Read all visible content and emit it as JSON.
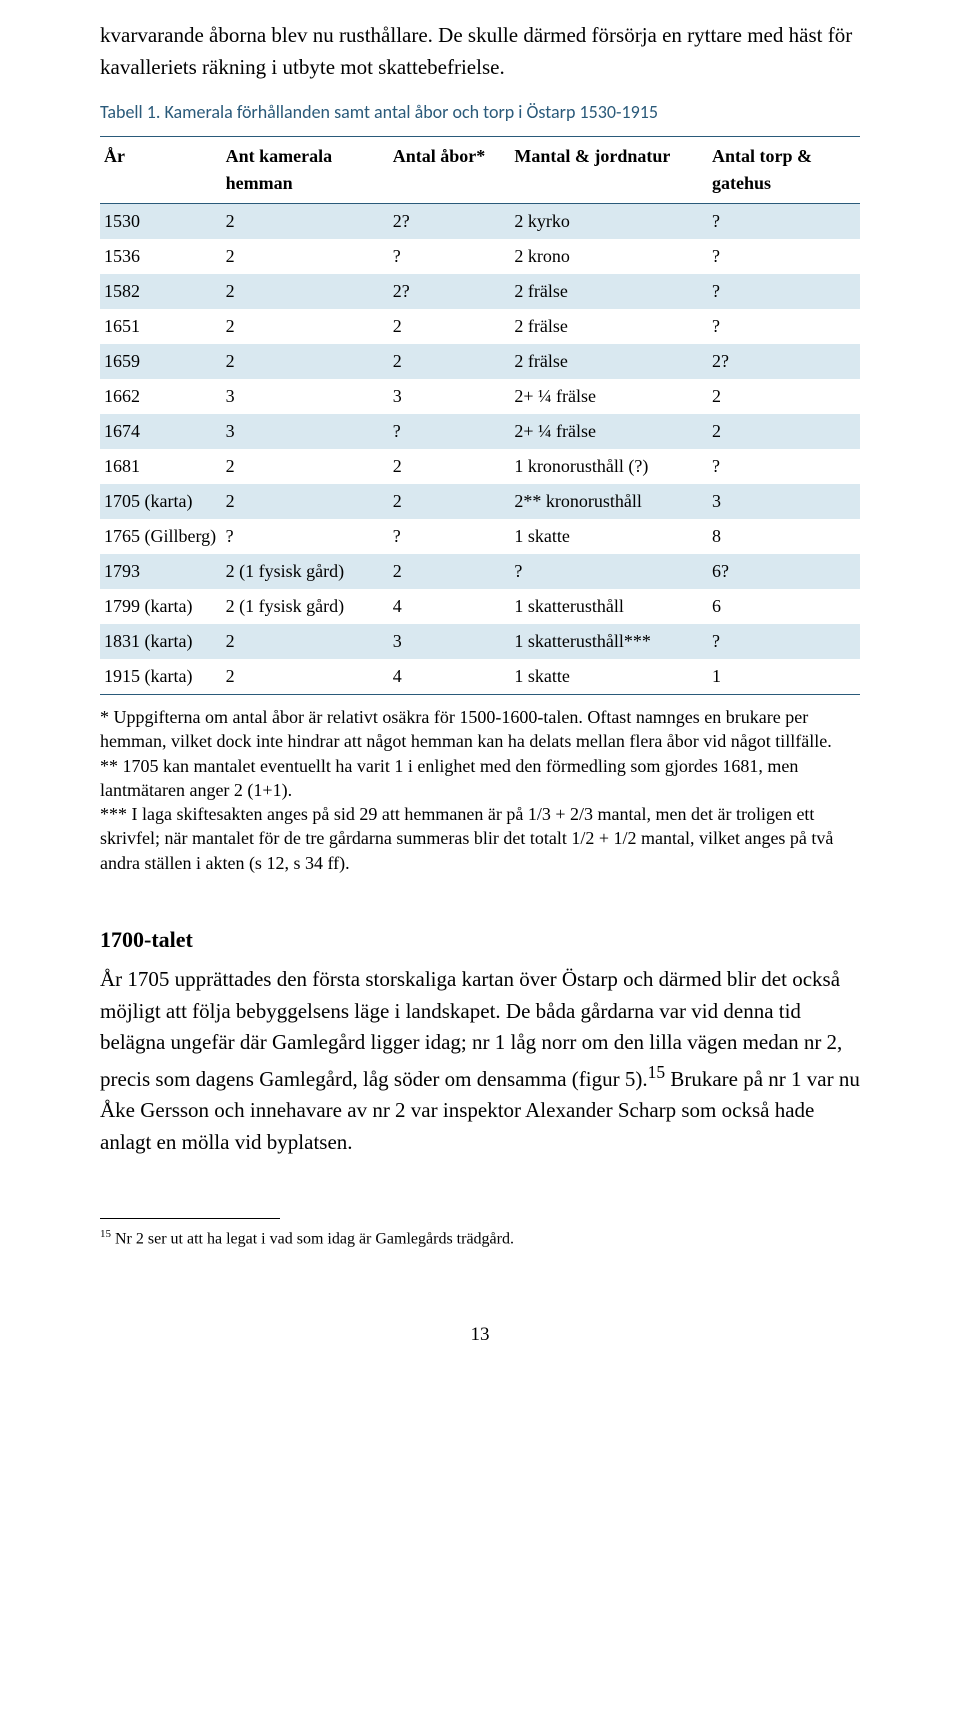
{
  "intro_para": "kvarvarande åborna blev nu rusthållare. De skulle därmed försörja en ryttare med häst för kavalleriets räkning i utbyte mot skattebefrielse.",
  "table_caption": "Tabell 1. Kamerala förhållanden samt antal åbor och torp i Östarp 1530-1915",
  "table": {
    "header_row_bg": "#ffffff",
    "stripe_bg": "#d9e8f0",
    "border_color": "#2a5a7a",
    "columns": [
      {
        "label": "År"
      },
      {
        "label": "Ant kamerala hemman"
      },
      {
        "label": "Antal åbor*"
      },
      {
        "label": "Mantal & jordnatur"
      },
      {
        "label": "Antal torp & gatehus"
      }
    ],
    "rows": [
      {
        "ar": "1530",
        "hem": "2",
        "abor": "2?",
        "mantal": "2 kyrko",
        "torp": "?",
        "striped": true
      },
      {
        "ar": "1536",
        "hem": "2",
        "abor": "?",
        "mantal": "2 krono",
        "torp": "?",
        "striped": false
      },
      {
        "ar": "1582",
        "hem": "2",
        "abor": "2?",
        "mantal": "2 frälse",
        "torp": "?",
        "striped": true
      },
      {
        "ar": "1651",
        "hem": "2",
        "abor": "2",
        "mantal": "2 frälse",
        "torp": "?",
        "striped": false
      },
      {
        "ar": "1659",
        "hem": "2",
        "abor": "2",
        "mantal": "2 frälse",
        "torp": "2?",
        "striped": true
      },
      {
        "ar": "1662",
        "hem": "3",
        "abor": "3",
        "mantal": "2+ ¼ frälse",
        "torp": "2",
        "striped": false
      },
      {
        "ar": "1674",
        "hem": "3",
        "abor": "?",
        "mantal": "2+ ¼ frälse",
        "torp": "2",
        "striped": true
      },
      {
        "ar": "1681",
        "hem": "2",
        "abor": "2",
        "mantal": "1 kronorusthåll (?)",
        "torp": "?",
        "striped": false
      },
      {
        "ar": "1705  (karta)",
        "hem": "2",
        "abor": "2",
        "mantal": "2** kronorusthåll",
        "torp": "3",
        "striped": true
      },
      {
        "ar": "1765  (Gillberg)",
        "hem": "?",
        "abor": "?",
        "mantal": "1 skatte",
        "torp": "8",
        "striped": false
      },
      {
        "ar": "1793",
        "hem": "2 (1 fysisk gård)",
        "abor": "2",
        "mantal": "?",
        "torp": "6?",
        "striped": true
      },
      {
        "ar": "1799  (karta)",
        "hem": "2 (1 fysisk gård)",
        "abor": "4",
        "mantal": "1 skatterusthåll",
        "torp": "6",
        "striped": false
      },
      {
        "ar": "1831  (karta)",
        "hem": "2",
        "abor": "3",
        "mantal": "1 skatterusthåll***",
        "torp": "?",
        "striped": true
      },
      {
        "ar": "1915  (karta)",
        "hem": "2",
        "abor": "4",
        "mantal": "1 skatte",
        "torp": "1",
        "striped": false
      }
    ]
  },
  "footnotes": {
    "n1": "* Uppgifterna om antal åbor är relativt osäkra för 1500-1600-talen. Oftast namnges en brukare per hemman, vilket dock inte hindrar att något hemman kan ha delats mellan flera åbor vid något tillfälle.",
    "n2": "** 1705 kan mantalet eventuellt ha varit 1 i enlighet med den förmedling som gjordes 1681, men lantmätaren anger 2 (1+1).",
    "n3": "*** I laga skiftesakten anges på sid 29 att hemmanen är på 1/3 + 2/3 mantal, men det är troligen ett skrivfel; när mantalet för de tre gårdarna summeras blir det totalt 1/2 + 1/2 mantal, vilket anges på två andra ställen i akten (s 12, s 34 ff)."
  },
  "section_heading": "1700-talet",
  "body_para": "År 1705 upprättades den första storskaliga kartan över Östarp och därmed blir det också möjligt att följa bebyggelsens läge i landskapet. De båda gårdarna var vid denna tid belägna ungefär där Gamlegård ligger idag; nr 1 låg norr om den lilla vägen medan nr 2, precis som dagens Gamlegård, låg söder om densamma (figur 5).",
  "body_sup": "15",
  "body_para_tail": " Brukare på nr 1 var nu Åke Gersson och innehavare av nr 2 var inspektor Alexander Scharp som också hade anlagt en mölla vid byplatsen.",
  "endnote_sup": "15",
  "endnote_text": " Nr 2 ser ut att ha legat i vad som idag är Gamlegårds trädgård.",
  "page_number": "13"
}
